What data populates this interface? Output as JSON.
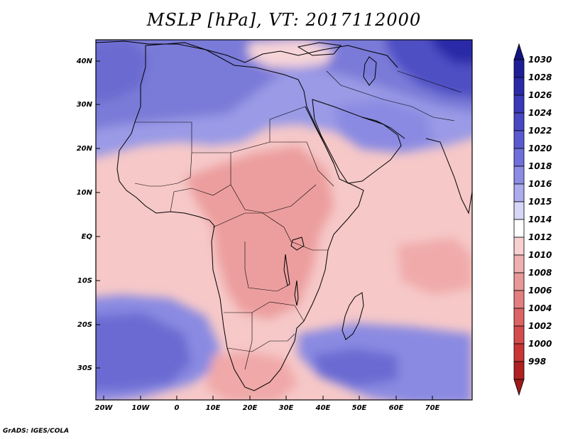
{
  "title": "MSLP [hPa], VT: 2017112000",
  "credit": "GrADS: IGES/COLA",
  "map": {
    "lon_range": [
      -23,
      80
    ],
    "lat_range": [
      -37,
      45
    ],
    "lat_labels": [
      {
        "lat": 40,
        "text": "40N"
      },
      {
        "lat": 30,
        "text": "30N"
      },
      {
        "lat": 20,
        "text": "20N"
      },
      {
        "lat": 10,
        "text": "10N"
      },
      {
        "lat": 0,
        "text": "EQ"
      },
      {
        "lat": -10,
        "text": "10S"
      },
      {
        "lat": -20,
        "text": "20S"
      },
      {
        "lat": -30,
        "text": "30S"
      }
    ],
    "lon_labels": [
      {
        "lon": -20,
        "text": "20W"
      },
      {
        "lon": -10,
        "text": "10W"
      },
      {
        "lon": 0,
        "text": "0"
      },
      {
        "lon": 10,
        "text": "10E"
      },
      {
        "lon": 20,
        "text": "20E"
      },
      {
        "lon": 30,
        "text": "30E"
      },
      {
        "lon": 40,
        "text": "40E"
      },
      {
        "lon": 50,
        "text": "50E"
      },
      {
        "lon": 60,
        "text": "60E"
      },
      {
        "lon": 70,
        "text": "70E"
      }
    ]
  },
  "colorbar": {
    "levels": [
      {
        "value": "1030",
        "color": "#1e1e96"
      },
      {
        "value": "1028",
        "color": "#2a2aa8"
      },
      {
        "value": "1026",
        "color": "#3838b8"
      },
      {
        "value": "1024",
        "color": "#4848c4"
      },
      {
        "value": "1022",
        "color": "#5a5ad0"
      },
      {
        "value": "1020",
        "color": "#7070da"
      },
      {
        "value": "1018",
        "color": "#8c8ce4"
      },
      {
        "value": "1016",
        "color": "#acacee"
      },
      {
        "value": "1015",
        "color": "#d6d6f8"
      },
      {
        "value": "1014",
        "color": "#ffffff"
      },
      {
        "value": "1012",
        "color": "#f8d0d0"
      },
      {
        "value": "1010",
        "color": "#f0b0b0"
      },
      {
        "value": "1008",
        "color": "#e89898"
      },
      {
        "value": "1006",
        "color": "#e28080"
      },
      {
        "value": "1004",
        "color": "#dc6464"
      },
      {
        "value": "1002",
        "color": "#d44c4c"
      },
      {
        "value": "1000",
        "color": "#c83636"
      },
      {
        "value": "998",
        "color": "#b02020"
      }
    ],
    "top_arrow_color": "#14147e",
    "bottom_arrow_color": "#a01818"
  }
}
